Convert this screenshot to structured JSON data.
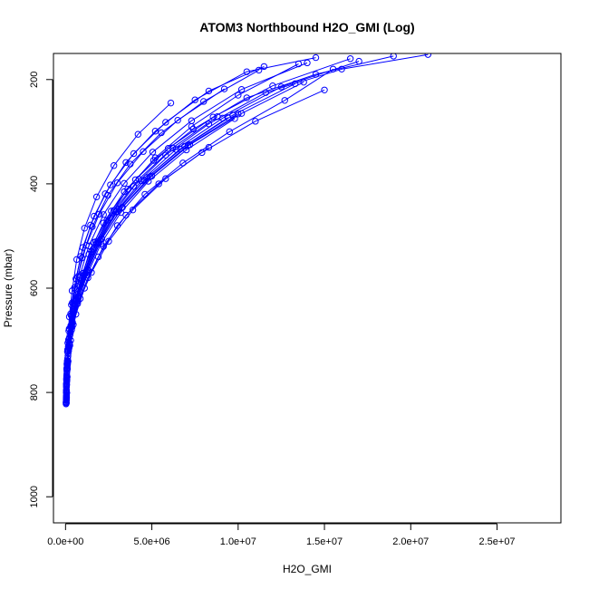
{
  "chart_data": {
    "type": "line",
    "title": "ATOM3 Northbound H2O_GMI (Log)",
    "xlabel": "H2O_GMI",
    "ylabel": "Pressure (mbar)",
    "xlim": [
      -700000,
      28700000
    ],
    "ylim": [
      1050,
      150
    ],
    "y_reversed": true,
    "grid": false,
    "x_ticks": [
      0,
      5000000,
      10000000,
      15000000,
      20000000,
      25000000
    ],
    "x_tick_labels": [
      "0.0e+00",
      "5.0e+06",
      "1.0e+07",
      "1.5e+07",
      "2.0e+07",
      "2.5e+07"
    ],
    "y_ticks": [
      200,
      400,
      600,
      800,
      1000
    ],
    "y_tick_labels": [
      "200",
      "400",
      "600",
      "800",
      "1000"
    ],
    "series_color": "#0000ff",
    "marker": "open-circle",
    "series": [
      {
        "x": [
          50000,
          60000,
          90000,
          150000,
          300000,
          600000,
          1100000,
          1900000,
          3000000,
          4600000,
          6800000,
          9500000,
          12700000,
          15500000
        ],
        "y": [
          820,
          800,
          770,
          740,
          700,
          650,
          600,
          540,
          480,
          420,
          360,
          300,
          240,
          180
        ]
      },
      {
        "x": [
          40000,
          50000,
          80000,
          140000,
          260000,
          500000,
          900000,
          1500000,
          2400000,
          3600000,
          5200000,
          7300000,
          10000000,
          13500000
        ],
        "y": [
          815,
          790,
          760,
          730,
          690,
          640,
          590,
          530,
          470,
          410,
          350,
          290,
          230,
          170
        ]
      },
      {
        "x": [
          60000,
          70000,
          110000,
          180000,
          350000,
          700000,
          1300000,
          2200000,
          3500000,
          5400000,
          7900000,
          11000000,
          15000000
        ],
        "y": [
          810,
          785,
          755,
          720,
          680,
          630,
          580,
          520,
          460,
          400,
          340,
          280,
          220
        ]
      },
      {
        "x": [
          50000,
          80000,
          120000,
          250000,
          450000,
          850000,
          1500000,
          2500000,
          3900000,
          5800000,
          8300000
        ],
        "y": [
          805,
          775,
          745,
          710,
          670,
          620,
          570,
          510,
          450,
          390,
          330
        ]
      },
      {
        "x": [
          40000,
          60000,
          100000,
          200000,
          380000,
          720000,
          1250000,
          2050000,
          3200000,
          4800000,
          7000000,
          9800000
        ],
        "y": [
          812,
          782,
          752,
          715,
          675,
          625,
          575,
          515,
          455,
          395,
          335,
          275
        ]
      },
      {
        "x": [
          30000,
          50000,
          70000,
          120000,
          220000,
          420000,
          780000,
          1350000,
          2200000,
          3400000,
          5100000,
          7400000,
          10500000,
          14500000,
          19000000
        ],
        "y": [
          818,
          795,
          765,
          735,
          695,
          645,
          595,
          535,
          475,
          415,
          355,
          295,
          235,
          190,
          155
        ]
      },
      {
        "x": [
          70000,
          90000,
          130000,
          230000,
          400000,
          760000,
          1300000,
          2100000,
          3300000,
          5000000,
          7200000,
          10200000,
          13800000
        ],
        "y": [
          800,
          770,
          740,
          705,
          665,
          615,
          565,
          505,
          445,
          385,
          325,
          265,
          205
        ]
      },
      {
        "x": [
          50000,
          60000,
          90000,
          160000,
          300000,
          560000,
          980000,
          1650000,
          2650000,
          4050000,
          5950000,
          8550000,
          12000000,
          16500000
        ],
        "y": [
          808,
          778,
          748,
          712,
          672,
          622,
          572,
          512,
          452,
          392,
          332,
          272,
          212,
          160
        ]
      },
      {
        "x": [
          45000,
          55000,
          85000,
          150000,
          290000,
          540000,
          950000,
          1600000,
          2600000,
          3950000,
          5800000,
          8300000,
          11600000,
          16000000,
          21000000
        ],
        "y": [
          816,
          788,
          758,
          725,
          685,
          635,
          585,
          525,
          465,
          405,
          345,
          285,
          225,
          180,
          152
        ]
      },
      {
        "x": [
          35000,
          45000,
          60000,
          100000,
          180000,
          320000,
          560000,
          950000,
          1550000,
          2450000,
          3750000,
          5550000,
          8000000,
          11200000
        ],
        "y": [
          820,
          798,
          772,
          742,
          702,
          652,
          602,
          542,
          482,
          422,
          362,
          302,
          242,
          182
        ]
      },
      {
        "x": [
          40000,
          55000,
          75000,
          120000,
          210000,
          390000,
          700000,
          1200000,
          1950000,
          3000000,
          4500000,
          6500000,
          9200000
        ],
        "y": [
          810,
          783,
          753,
          718,
          678,
          628,
          578,
          518,
          458,
          398,
          338,
          278,
          218
        ]
      },
      {
        "x": [
          55000,
          65000,
          95000,
          170000,
          320000,
          600000,
          1050000,
          1750000,
          2800000,
          4250000,
          6200000,
          8800000
        ],
        "y": [
          806,
          776,
          746,
          711,
          671,
          621,
          571,
          511,
          451,
          391,
          331,
          271
        ]
      },
      {
        "x": [
          30000,
          40000,
          55000,
          80000,
          130000,
          220000,
          380000,
          650000,
          1100000,
          1800000,
          2800000,
          4200000,
          6100000
        ],
        "y": [
          822,
          800,
          775,
          745,
          705,
          655,
          605,
          545,
          485,
          425,
          365,
          305,
          245
        ]
      },
      {
        "x": [
          60000,
          80000,
          120000,
          210000,
          380000,
          700000,
          1200000,
          2000000,
          3100000,
          4700000,
          6900000,
          9700000,
          13300000
        ],
        "y": [
          803,
          773,
          743,
          708,
          668,
          618,
          568,
          508,
          448,
          388,
          328,
          268,
          208
        ]
      },
      {
        "x": [
          50000,
          70000,
          100000,
          180000,
          330000,
          620000,
          1080000,
          1800000,
          2900000,
          4400000,
          6400000,
          9100000,
          12500000,
          17000000
        ],
        "y": [
          809,
          779,
          749,
          714,
          674,
          624,
          574,
          514,
          454,
          394,
          334,
          274,
          214,
          165
        ]
      },
      {
        "x": [
          45000,
          50000,
          70000,
          110000,
          190000,
          340000,
          600000,
          1000000,
          1650000,
          2600000,
          3950000,
          5800000,
          8300000,
          11500000
        ],
        "y": [
          814,
          786,
          756,
          722,
          682,
          632,
          582,
          522,
          462,
          402,
          342,
          282,
          222,
          175
        ]
      },
      {
        "x": [
          65000,
          85000,
          125000,
          220000,
          400000,
          740000,
          1280000,
          2100000,
          3250000,
          4900000,
          7100000,
          10000000
        ],
        "y": [
          801,
          771,
          741,
          706,
          666,
          616,
          566,
          506,
          446,
          386,
          326,
          266
        ]
      },
      {
        "x": [
          35000,
          45000,
          65000,
          100000,
          170000,
          300000,
          520000,
          880000,
          1450000,
          2300000,
          3500000,
          5200000,
          7500000,
          10500000,
          14500000
        ],
        "y": [
          819,
          796,
          769,
          739,
          699,
          649,
          599,
          539,
          479,
          419,
          359,
          299,
          239,
          185,
          158
        ]
      },
      {
        "x": [
          55000,
          75000,
          110000,
          190000,
          350000,
          650000,
          1130000,
          1880000,
          2980000,
          4550000,
          6650000,
          9400000
        ],
        "y": [
          807,
          777,
          747,
          713,
          673,
          623,
          573,
          513,
          453,
          393,
          333,
          273
        ]
      },
      {
        "x": [
          40000,
          50000,
          75000,
          130000,
          240000,
          450000,
          800000,
          1350000,
          2200000,
          3400000,
          5050000,
          7300000,
          10200000,
          14000000
        ],
        "y": [
          813,
          784,
          754,
          719,
          679,
          629,
          579,
          519,
          459,
          399,
          339,
          279,
          219,
          168
        ]
      }
    ]
  }
}
